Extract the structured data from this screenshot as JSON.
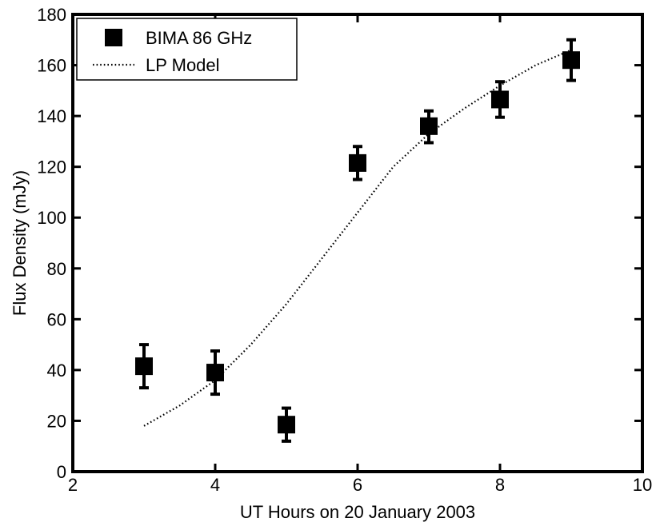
{
  "chart_data": {
    "type": "scatter",
    "xlabel": "UT Hours on 20 January 2003",
    "ylabel": "Flux Density (mJy)",
    "xlim": [
      2,
      10
    ],
    "ylim": [
      0,
      180
    ],
    "xticks": [
      2,
      4,
      6,
      8,
      10
    ],
    "yticks": [
      0,
      20,
      40,
      60,
      80,
      100,
      120,
      140,
      160,
      180
    ],
    "grid": false,
    "legend_position": "top-left",
    "series": [
      {
        "name": "BIMA 86 GHz",
        "kind": "points_with_errorbars",
        "marker": "filled-square",
        "color": "#000000",
        "points": [
          {
            "x": 3,
            "y": 41.5,
            "err_low": 33,
            "err_high": 50
          },
          {
            "x": 4,
            "y": 39,
            "err_low": 30.5,
            "err_high": 47.5
          },
          {
            "x": 5,
            "y": 18.5,
            "err_low": 12,
            "err_high": 25
          },
          {
            "x": 6,
            "y": 121.5,
            "err_low": 115,
            "err_high": 128
          },
          {
            "x": 7,
            "y": 136,
            "err_low": 129.5,
            "err_high": 142
          },
          {
            "x": 8,
            "y": 146.5,
            "err_low": 139.5,
            "err_high": 153.5
          },
          {
            "x": 9,
            "y": 162,
            "err_low": 154,
            "err_high": 170
          }
        ]
      },
      {
        "name": "LP Model",
        "kind": "line",
        "style": "dotted",
        "color": "#000000",
        "x": [
          3.0,
          3.5,
          4.0,
          4.5,
          5.0,
          5.5,
          6.0,
          6.5,
          7.0,
          7.5,
          8.0,
          8.5,
          9.0
        ],
        "y": [
          18,
          26,
          36,
          50,
          66,
          84,
          102,
          120,
          133,
          143,
          152,
          160,
          166
        ]
      }
    ]
  }
}
